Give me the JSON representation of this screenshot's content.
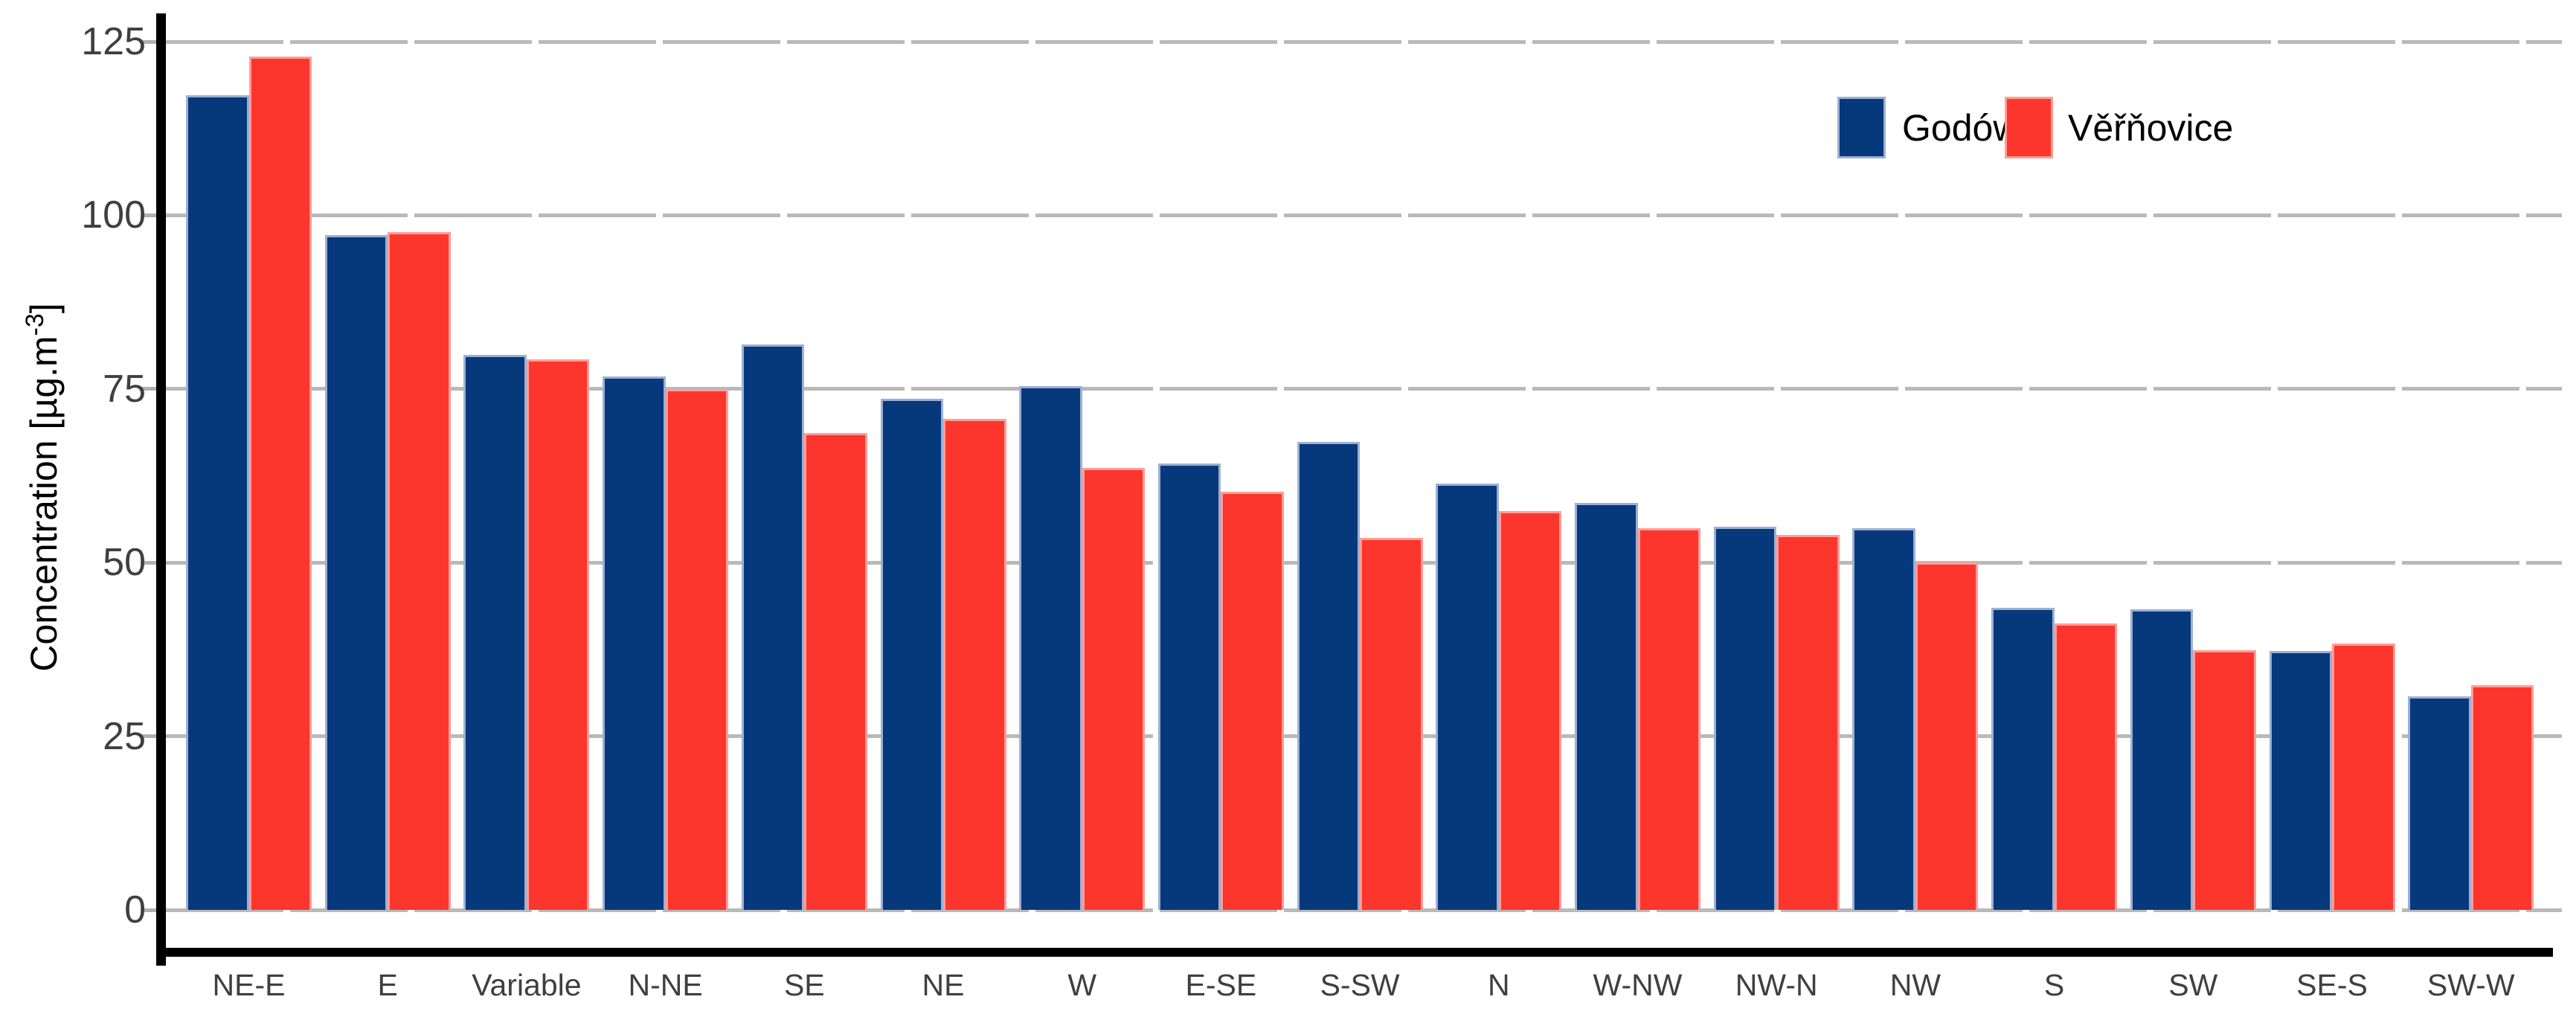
{
  "chart_data": {
    "type": "bar",
    "categories": [
      "NE-E",
      "E",
      "Variable",
      "N-NE",
      "SE",
      "NE",
      "W",
      "E-SE",
      "S-SW",
      "N",
      "W-NW",
      "NW-N",
      "NW",
      "S",
      "SW",
      "SE-S",
      "SW-W"
    ],
    "series": [
      {
        "name": "Godów",
        "color": "#06387c",
        "border_color": "#9db0d3",
        "values": [
          117.3,
          97.2,
          79.9,
          76.8,
          81.4,
          73.6,
          75.4,
          64.3,
          67.4,
          61.4,
          58.6,
          55.2,
          55.0,
          43.5,
          43.3,
          37.3,
          30.7
        ]
      },
      {
        "name": "Věřňovice",
        "color": "#fc352d",
        "border_color": "#ff9d97",
        "values": [
          122.9,
          97.6,
          79.3,
          75.0,
          68.7,
          70.7,
          63.6,
          60.2,
          53.6,
          57.4,
          54.9,
          54.0,
          50.0,
          41.2,
          37.4,
          38.3,
          32.3
        ]
      }
    ],
    "title": "",
    "xlabel": "",
    "ylabel": "Concentration [µg.m⁻³]",
    "ylabel_parts": {
      "prefix": "Concentration [µg.m",
      "superscript": "-3",
      "suffix": "]"
    },
    "yticks": [
      "0",
      "25",
      "50",
      "75",
      "100",
      "125"
    ],
    "ytick_values": [
      0,
      25,
      50,
      75,
      100,
      125
    ],
    "ylim": [
      0,
      130
    ],
    "grid": "horizontal-dashed",
    "grid_color": "#b9b9b9",
    "axis_color": "#000000",
    "tick_label_color": "#3f3f3f",
    "legend_position": "top-right",
    "legend": {
      "items": [
        {
          "label": "Godów"
        },
        {
          "label": "Věřňovice"
        }
      ]
    }
  }
}
